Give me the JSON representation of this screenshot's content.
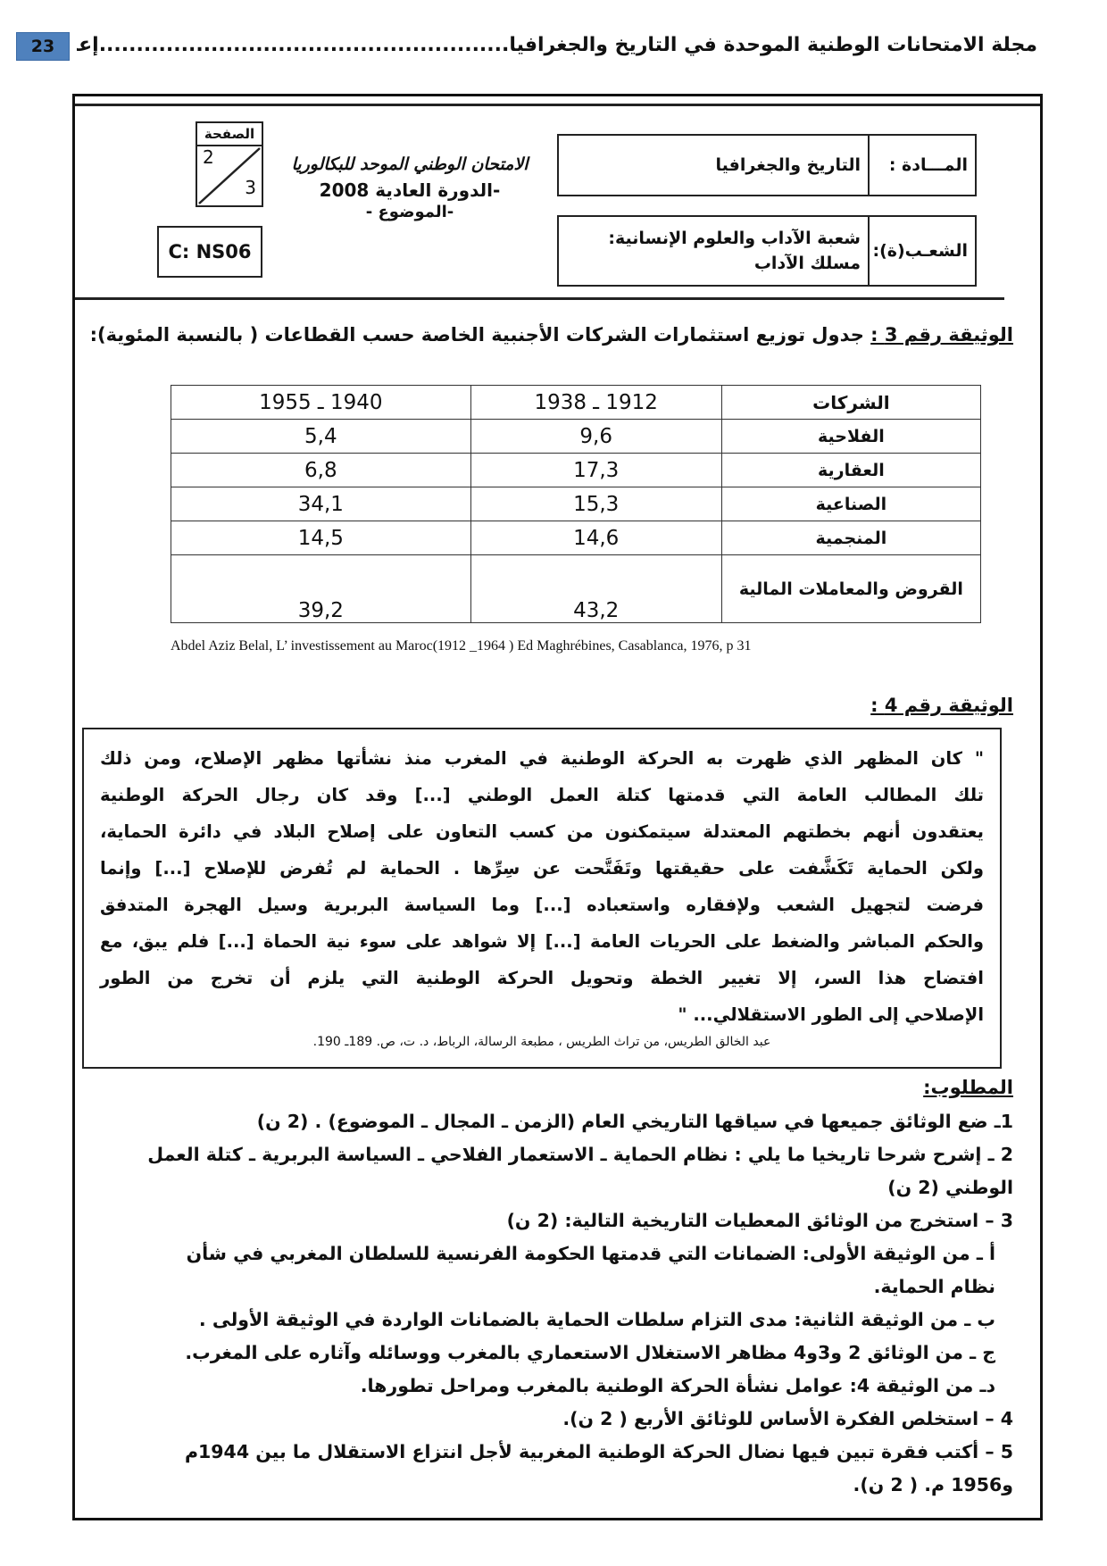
{
  "running_header": {
    "page_number": "23",
    "text": "مجلة الامتحانات الوطنية الموحدة في التاريخ والجغرافيا.......................................................إعداد : ذ. مصطفى شلبي",
    "accent": "#4f81bd"
  },
  "exam_header": {
    "page_label": "الصفحة",
    "page_current": "2",
    "page_total": "3",
    "code": "C: NS06",
    "exam_title": "الامتحان الوطني الموحد للبكالوريا",
    "session": "-الدورة العادية 2008",
    "subject_line": "-الموضوع -",
    "subject_label": "المـــادة :",
    "subject_value": "التاريخ والجغرافيا",
    "branch_label": "الشعـب(ة):",
    "branch_value": "شعبة الآداب والعلوم الإنسانية: مسلك الآداب"
  },
  "doc3": {
    "label": "الوثيقة رقم 3 :",
    "title": "جدول توزيع استثمارات الشركات الأجنبية الخاصة حسب القطاعات ( بالنسبة المئوية):",
    "headers": [
      "الشركات",
      "1912 ـ 1938",
      "1940 ـ 1955"
    ],
    "rows": [
      [
        "الفلاحية",
        "9,6",
        "5,4"
      ],
      [
        "العقارية",
        "17,3",
        "6,8"
      ],
      [
        "الصناعية",
        "15,3",
        "34,1"
      ],
      [
        "المنجمية",
        "14,6",
        "14,5"
      ],
      [
        "القروض والمعاملات المالية",
        "43,2",
        "39,2"
      ]
    ],
    "source": "Abdel Aziz Belal, L’ investissement au Maroc(1912 _1964 ) Ed  Maghrébines, Casablanca, 1976, p 31"
  },
  "doc4": {
    "label": "الوثيقة رقم 4 :",
    "lines": [
      "\" كان المظهر الذي ظهرت به الحركة الوطنية في المغرب منذ نشأتها مظهر الإصلاح، ومن ذلك",
      "تلك المطالب العامة التي قدمتها كتلة العمل الوطني [...] وقد كان رجال الحركة الوطنية",
      "يعتقدون أنهم بخطتهم المعتدلة سيتمكنون من كسب التعاون على إصلاح البلاد في دائرة الحماية،",
      "ولكن الحماية تَكَشَّفت على حقيقتها وتَفَتَّحت عن سِرِّها . الحماية لم تُفرض للإصلاح [...] وإنما",
      "فرضت لتجهيل الشعب ولإفقاره واستعباده [...] وما السياسة البربرية وسيل الهجرة المتدفق",
      "والحكم المباشر والضغط على الحريات العامة [...] إلا شواهد على سوء نية الحماة [...] فلم يبق، مع",
      "افتضاح هذا السر، إلا تغيير الخطة وتحويل الحركة الوطنية التي يلزم أن تخرج من الطور",
      "الإصلاحي إلى الطور الاستقلالي... \""
    ],
    "source": "عبد الخالق الطريس، من تراث الطريس ، مطبعة الرسالة، الرباط، د. ت، ص. 189ـ 190."
  },
  "tasks": {
    "label": "المطلوب:",
    "items": [
      "1ـ ضع الوثائق جميعها في سياقها التاريخي العام (الزمن ـ المجال ـ الموضوع) . (2 ن)",
      "2 ـ إشرح شرحا تاريخيا ما يلي :  نظام الحماية ـ الاستعمار الفلاحي ـ السياسة البربرية ـ كتلة العمل الوطني (2 ن)",
      "3 – استخرج من الوثائق المعطيات التاريخية التالية: (2 ن)",
      "أ ـ من الوثيقة الأولى: الضمانات التي قدمتها الحكومة الفرنسية للسلطان المغربي في شأن نظام الحماية.",
      "ب ـ من الوثيقة الثانية: مدى التزام سلطات الحماية بالضمانات الواردة في الوثيقة الأولى .",
      "ج ـ من الوثائق 2 و3و4 مظاهر الاستغلال الاستعماري بالمغرب ووسائله وآثاره على المغرب.",
      "دـ من الوثيقة 4: عوامل نشأة الحركة الوطنية بالمغرب ومراحل تطورها.",
      "4 – استخلص الفكرة الأساس للوثائق الأربع ( 2 ن).",
      "5 – أكتب فقرة تبين فيها نضال الحركة الوطنية المغربية لأجل انتزاع الاستقلال ما بين 1944م و1956 م. ( 2 ن)."
    ]
  }
}
